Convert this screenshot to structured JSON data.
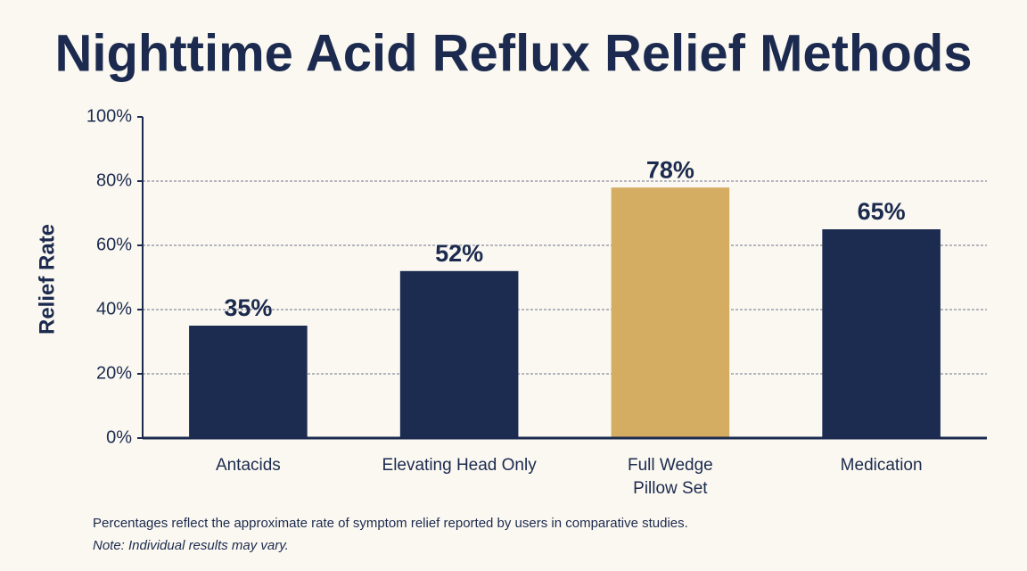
{
  "chart_data": {
    "type": "bar",
    "title": "Nighttime Acid Reflux Relief Methods",
    "y_label": "Relief Rate",
    "categories": [
      "Antacids",
      "Elevating Head Only",
      "Full Wedge\nPillow Set",
      "Medication"
    ],
    "values": [
      35,
      52,
      78,
      65
    ],
    "value_labels": [
      "35%",
      "52%",
      "78%",
      "65%"
    ],
    "colors": [
      "#1c2b50",
      "#1c2b50",
      "#d4ac62",
      "#1c2b50"
    ],
    "ylim": [
      0,
      100
    ],
    "yticks": [
      {
        "value": 0,
        "label": "0%"
      },
      {
        "value": 20,
        "label": "20%"
      },
      {
        "value": 40,
        "label": "40%"
      },
      {
        "value": 60,
        "label": "60%"
      },
      {
        "value": 80,
        "label": "80%"
      },
      {
        "value": 100,
        "label": "100%"
      }
    ],
    "grid": true,
    "notes": [
      "Percentages reflect the approximate rate of symptom relief reported by users in comparative studies.",
      "Note: Individual results may vary."
    ]
  }
}
